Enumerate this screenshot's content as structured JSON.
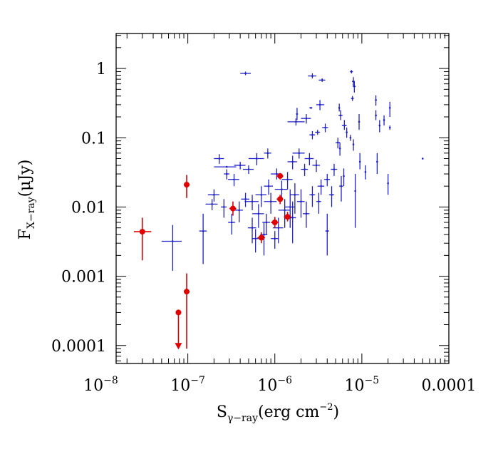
{
  "chart_data": {
    "type": "scatter",
    "x_scale": "log",
    "y_scale": "log",
    "xlim": [
      1.5e-08,
      0.0001
    ],
    "ylim": [
      5.5e-05,
      3.2
    ],
    "grid": false,
    "legend": "none",
    "xlabel": {
      "main": "S",
      "sub": "γ−ray",
      "rest": "(erg cm",
      "sup": "−2",
      "close": ")"
    },
    "ylabel": {
      "main": "F",
      "sub": "X−ray",
      "rest": "(μJy)"
    },
    "xticks": [
      {
        "value": 1e-08,
        "base": "10",
        "exp": "−8"
      },
      {
        "value": 1e-07,
        "base": "10",
        "exp": "−7"
      },
      {
        "value": 1e-06,
        "base": "10",
        "exp": "−6"
      },
      {
        "value": 1e-05,
        "base": "10",
        "exp": "−5"
      },
      {
        "value": 0.0001,
        "text": "0.0001"
      }
    ],
    "yticks": [
      {
        "value": 0.0001,
        "text": "0.0001"
      },
      {
        "value": 0.001,
        "text": "0.001"
      },
      {
        "value": 0.01,
        "text": "0.01"
      },
      {
        "value": 0.1,
        "text": "0.1"
      },
      {
        "value": 1,
        "text": "1"
      }
    ],
    "colors": {
      "blue": "#2020c8",
      "red": "#e00000"
    },
    "series": [
      {
        "color": "blue",
        "marker": "cross",
        "points": [
          {
            "x": 4.6e-07,
            "y": 0.85,
            "xl": 4e-07,
            "xh": 5.3e-07,
            "yl": 0.8,
            "yh": 0.9
          },
          {
            "x": 2.7e-06,
            "y": 0.78,
            "xl": 2.4e-06,
            "xh": 3e-06,
            "yl": 0.72,
            "yh": 0.85
          },
          {
            "x": 3.5e-06,
            "y": 0.68,
            "xl": 3.2e-06,
            "xh": 3.8e-06,
            "yl": 0.64,
            "yh": 0.72
          },
          {
            "x": 7.6e-06,
            "y": 0.9,
            "xl": 7.3e-06,
            "xh": 7.9e-06,
            "yl": 0.85,
            "yh": 0.95
          },
          {
            "x": 8e-06,
            "y": 0.65,
            "xl": 7.7e-06,
            "xh": 8.3e-06,
            "yl": 0.55,
            "yh": 0.75
          },
          {
            "x": 8.2e-06,
            "y": 0.55,
            "xl": 7.9e-06,
            "xh": 8.5e-06,
            "yl": 0.45,
            "yh": 0.65
          },
          {
            "x": 7.8e-06,
            "y": 0.37,
            "xl": 7.5e-06,
            "xh": 8.1e-06,
            "yl": 0.34,
            "yh": 0.4
          },
          {
            "x": 1.45e-05,
            "y": 0.35,
            "yl": 0.29,
            "yh": 0.41
          },
          {
            "x": 1.8e-05,
            "y": 0.18,
            "yl": 0.15,
            "yh": 0.21
          },
          {
            "x": 2.1e-05,
            "y": 0.27,
            "yl": 0.2,
            "yh": 0.33
          },
          {
            "x": 2.1e-05,
            "y": 0.14,
            "yl": 0.13,
            "yh": 0.15
          },
          {
            "x": 1.45e-05,
            "y": 0.21,
            "yl": 0.18,
            "yh": 0.25
          },
          {
            "x": 1.6e-05,
            "y": 0.15,
            "yl": 0.12,
            "yh": 0.18
          },
          {
            "x": 5.5e-06,
            "y": 0.27,
            "yl": 0.24,
            "yh": 0.31
          },
          {
            "x": 5.7e-06,
            "y": 0.21,
            "xl": 5.4e-06,
            "xh": 6e-06,
            "yl": 0.18,
            "yh": 0.25
          },
          {
            "x": 9.3e-06,
            "y": 0.17,
            "yl": 0.13,
            "yh": 0.22
          },
          {
            "x": 3.3e-06,
            "y": 0.3,
            "xl": 3e-06,
            "xh": 3.7e-06,
            "yl": 0.25,
            "yh": 0.35
          },
          {
            "x": 2.6e-06,
            "y": 0.27,
            "xl": 2.5e-06,
            "xh": 2.7e-06
          },
          {
            "x": 2.3e-06,
            "y": 0.19,
            "xl": 2e-06,
            "xh": 2.6e-06,
            "yl": 0.16,
            "yh": 0.22
          },
          {
            "x": 1.75e-06,
            "y": 0.17,
            "xl": 1.4e-06,
            "xh": 2.2e-06,
            "yl": 0.15,
            "yh": 0.19
          },
          {
            "x": 1.8e-06,
            "y": 0.22,
            "yl": 0.18,
            "yh": 0.27
          },
          {
            "x": 3.8e-06,
            "y": 0.14,
            "xl": 3.5e-06,
            "xh": 4.1e-06,
            "yl": 0.12,
            "yh": 0.16
          },
          {
            "x": 3.1e-06,
            "y": 0.12,
            "xl": 2.9e-06,
            "xh": 3.3e-06,
            "yl": 0.11,
            "yh": 0.13
          },
          {
            "x": 2.7e-06,
            "y": 0.11,
            "xl": 2.5e-06,
            "xh": 2.9e-06,
            "yl": 0.095,
            "yh": 0.125
          },
          {
            "x": 6.3e-06,
            "y": 0.15,
            "xl": 5.9e-06,
            "xh": 6.7e-06,
            "yl": 0.13,
            "yh": 0.18
          },
          {
            "x": 6.7e-06,
            "y": 0.12,
            "yl": 0.1,
            "yh": 0.14
          },
          {
            "x": 7.4e-06,
            "y": 0.1,
            "yl": 0.09,
            "yh": 0.11
          },
          {
            "x": 5.3e-06,
            "y": 0.085,
            "xl": 5e-06,
            "xh": 5.6e-06,
            "yl": 0.07,
            "yh": 0.1
          },
          {
            "x": 5.6e-06,
            "y": 0.07,
            "yl": 0.055,
            "yh": 0.085
          },
          {
            "x": 8e-06,
            "y": 0.08,
            "yl": 0.065,
            "yh": 0.095
          },
          {
            "x": 9.5e-06,
            "y": 0.045,
            "yl": 0.035,
            "yh": 0.06
          },
          {
            "x": 1.1e-05,
            "y": 0.032,
            "yl": 0.025,
            "yh": 0.04
          },
          {
            "x": 1.5e-05,
            "y": 0.045,
            "yl": 0.03,
            "yh": 0.06
          },
          {
            "x": 2e-05,
            "y": 0.022,
            "yl": 0.015,
            "yh": 0.03
          },
          {
            "x": 5e-05,
            "y": 0.05,
            "xl": 4.9e-05,
            "xh": 5.1e-05
          },
          {
            "x": 8.4e-06,
            "y": 0.017,
            "yl": 0.005,
            "yh": 0.03
          },
          {
            "x": 5.8e-06,
            "y": 0.02,
            "xl": 5.5e-06,
            "xh": 6.1e-06,
            "yl": 0.012,
            "yh": 0.028
          },
          {
            "x": 6.2e-06,
            "y": 0.028,
            "yl": 0.02,
            "yh": 0.036
          },
          {
            "x": 4.8e-06,
            "y": 0.035,
            "xl": 4.4e-06,
            "xh": 5.2e-06,
            "yl": 0.028,
            "yh": 0.042
          },
          {
            "x": 4e-06,
            "y": 0.025,
            "xl": 3.7e-06,
            "xh": 4.3e-06,
            "yl": 0.02,
            "yh": 0.03
          },
          {
            "x": 3.4e-06,
            "y": 0.02,
            "xl": 3.1e-06,
            "xh": 3.7e-06,
            "yl": 0.015,
            "yh": 0.025
          },
          {
            "x": 3e-06,
            "y": 0.04,
            "xl": 2.7e-06,
            "xh": 3.3e-06,
            "yl": 0.032,
            "yh": 0.048
          },
          {
            "x": 2.5e-06,
            "y": 0.05,
            "xl": 2.2e-06,
            "xh": 2.8e-06,
            "yl": 0.04,
            "yh": 0.06
          },
          {
            "x": 2.2e-06,
            "y": 0.035,
            "xl": 2e-06,
            "xh": 2.4e-06,
            "yl": 0.028,
            "yh": 0.042
          },
          {
            "x": 1.9e-06,
            "y": 0.06,
            "xl": 1.6e-06,
            "xh": 2.2e-06,
            "yl": 0.05,
            "yh": 0.07
          },
          {
            "x": 1.6e-06,
            "y": 0.045,
            "xl": 1.4e-06,
            "xh": 1.8e-06,
            "yl": 0.035,
            "yh": 0.055
          },
          {
            "x": 1.4e-06,
            "y": 0.025,
            "xl": 1.2e-06,
            "xh": 1.6e-06,
            "yl": 0.018,
            "yh": 0.032
          },
          {
            "x": 1.7e-06,
            "y": 0.015,
            "xl": 1.5e-06,
            "xh": 1.9e-06,
            "yl": 0.008,
            "yh": 0.022
          },
          {
            "x": 1.5e-06,
            "y": 0.01,
            "xl": 1.3e-06,
            "xh": 1.7e-06,
            "yl": 0.005,
            "yh": 0.018
          },
          {
            "x": 1.6e-06,
            "y": 0.007,
            "xl": 1.45e-06,
            "xh": 1.75e-06,
            "yl": 0.003,
            "yh": 0.012
          },
          {
            "x": 2e-06,
            "y": 0.012,
            "xl": 1.8e-06,
            "xh": 2.2e-06,
            "yl": 0.007,
            "yh": 0.018
          },
          {
            "x": 2.3e-06,
            "y": 0.008,
            "xl": 2.1e-06,
            "xh": 2.5e-06,
            "yl": 0.005,
            "yh": 0.012
          },
          {
            "x": 2.7e-06,
            "y": 0.015,
            "xl": 2.5e-06,
            "xh": 2.9e-06,
            "yl": 0.01,
            "yh": 0.02
          },
          {
            "x": 3.2e-06,
            "y": 0.012,
            "xl": 3e-06,
            "xh": 3.4e-06,
            "yl": 0.008,
            "yh": 0.016
          },
          {
            "x": 4e-06,
            "y": 0.0045,
            "xl": 3.8e-06,
            "xh": 4.2e-06,
            "yl": 0.002,
            "yh": 0.008
          },
          {
            "x": 4.5e-06,
            "y": 0.015,
            "xl": 4.2e-06,
            "xh": 4.8e-06,
            "yl": 0.01,
            "yh": 0.02
          },
          {
            "x": 1.2e-06,
            "y": 0.018,
            "xl": 1e-06,
            "xh": 1.4e-06,
            "yl": 0.012,
            "yh": 0.024
          },
          {
            "x": 1.3e-06,
            "y": 0.009,
            "xl": 1.1e-06,
            "xh": 1.5e-06,
            "yl": 0.005,
            "yh": 0.013
          },
          {
            "x": 1.1e-06,
            "y": 0.005,
            "xl": 9.5e-07,
            "xh": 1.25e-06,
            "yl": 0.003,
            "yh": 0.007
          },
          {
            "x": 9e-07,
            "y": 0.012,
            "xl": 7.5e-07,
            "xh": 1.05e-06,
            "yl": 0.008,
            "yh": 0.016
          },
          {
            "x": 1.05e-06,
            "y": 0.03,
            "xl": 9e-07,
            "xh": 1.2e-06,
            "yl": 0.025,
            "yh": 0.036
          },
          {
            "x": 8.5e-07,
            "y": 0.02,
            "xl": 7.5e-07,
            "xh": 9.5e-07,
            "yl": 0.015,
            "yh": 0.025
          },
          {
            "x": 7e-07,
            "y": 0.015,
            "xl": 6e-07,
            "xh": 8e-07,
            "yl": 0.01,
            "yh": 0.02
          },
          {
            "x": 6.5e-07,
            "y": 0.008,
            "xl": 5.5e-07,
            "xh": 7.5e-07,
            "yl": 0.005,
            "yh": 0.011
          },
          {
            "x": 5.5e-07,
            "y": 0.012,
            "xl": 4.5e-07,
            "xh": 6.5e-07,
            "yl": 0.009,
            "yh": 0.015
          },
          {
            "x": 8.3e-07,
            "y": 0.06,
            "xl": 7.5e-07,
            "xh": 9.1e-07,
            "yl": 0.05,
            "yh": 0.07
          },
          {
            "x": 6.2e-07,
            "y": 0.05,
            "xl": 5e-07,
            "xh": 7.5e-07,
            "yl": 0.04,
            "yh": 0.06
          },
          {
            "x": 5e-07,
            "y": 0.035,
            "xl": 4.3e-07,
            "xh": 5.7e-07,
            "yl": 0.03,
            "yh": 0.04
          },
          {
            "x": 4e-07,
            "y": 0.04,
            "xl": 3.4e-07,
            "xh": 4.6e-07,
            "yl": 0.035,
            "yh": 0.045
          },
          {
            "x": 3.4e-07,
            "y": 0.025,
            "xl": 2.9e-07,
            "xh": 3.9e-07,
            "yl": 0.02,
            "yh": 0.03
          },
          {
            "x": 2.8e-07,
            "y": 0.038,
            "xl": 2e-07,
            "xh": 3.6e-07
          },
          {
            "x": 2.3e-07,
            "y": 0.05,
            "xl": 2e-07,
            "xh": 2.6e-07,
            "yl": 0.042,
            "yh": 0.058
          },
          {
            "x": 2.8e-07,
            "y": 0.03,
            "xl": 2.6e-07,
            "xh": 3e-07,
            "yl": 0.025,
            "yh": 0.035
          },
          {
            "x": 2e-07,
            "y": 0.015,
            "xl": 1.7e-07,
            "xh": 2.3e-07,
            "yl": 0.012,
            "yh": 0.018
          },
          {
            "x": 1.9e-07,
            "y": 0.011,
            "xl": 1.6e-07,
            "xh": 2.2e-07,
            "yl": 0.009,
            "yh": 0.013
          },
          {
            "x": 2.6e-07,
            "y": 0.01,
            "xl": 2.4e-07,
            "xh": 2.8e-07,
            "yl": 0.007,
            "yh": 0.013
          },
          {
            "x": 3.2e-07,
            "y": 0.006,
            "xl": 2.9e-07,
            "xh": 3.5e-07,
            "yl": 0.004,
            "yh": 0.008
          },
          {
            "x": 3.9e-07,
            "y": 0.009,
            "xl": 3.5e-07,
            "xh": 4.3e-07,
            "yl": 0.006,
            "yh": 0.012
          },
          {
            "x": 4.6e-07,
            "y": 0.013,
            "xl": 4.1e-07,
            "xh": 5.1e-07,
            "yl": 0.01,
            "yh": 0.016
          },
          {
            "x": 1.5e-07,
            "y": 0.0045,
            "xl": 1.35e-07,
            "xh": 1.65e-07,
            "yl": 0.0015,
            "yh": 0.008
          },
          {
            "x": 6.7e-08,
            "y": 0.0032,
            "xl": 5e-08,
            "xh": 8.5e-08,
            "yl": 0.0012,
            "yh": 0.0055
          },
          {
            "x": 5.5e-07,
            "y": 0.005,
            "xl": 4.9e-07,
            "xh": 6.1e-07,
            "yl": 0.003,
            "yh": 0.007
          },
          {
            "x": 6e-07,
            "y": 0.0035,
            "xl": 5.5e-07,
            "xh": 6.5e-07,
            "yl": 0.0022,
            "yh": 0.0048
          },
          {
            "x": 7.5e-07,
            "y": 0.004,
            "xl": 6.8e-07,
            "xh": 8.2e-07,
            "yl": 0.002,
            "yh": 0.006
          },
          {
            "x": 8e-07,
            "y": 0.006,
            "xl": 7.2e-07,
            "xh": 8.8e-07,
            "yl": 0.004,
            "yh": 0.008
          },
          {
            "x": 1e-06,
            "y": 0.0035,
            "xl": 9e-07,
            "xh": 1.1e-06,
            "yl": 0.0025,
            "yh": 0.0045
          }
        ]
      },
      {
        "color": "red",
        "marker": "filled-circle",
        "points": [
          {
            "x": 3e-08,
            "y": 0.0044,
            "xl": 2.4e-08,
            "xh": 3.8e-08,
            "yl": 0.0017,
            "yh": 0.007
          },
          {
            "x": 9.7e-08,
            "y": 0.021,
            "xl": 9e-08,
            "xh": 1.05e-07,
            "yl": 0.0135,
            "yh": 0.029
          },
          {
            "x": 9.7e-08,
            "y": 0.0006,
            "xl": 9e-08,
            "xh": 1.05e-07,
            "yl": 9e-05,
            "yh": 0.0011
          },
          {
            "x": 7.8e-08,
            "y": 0.0003,
            "xl": 7.3e-08,
            "xh": 8.4e-08,
            "yl": 9e-05,
            "upper_limit": true
          },
          {
            "x": 3.3e-07,
            "y": 0.0095,
            "xl": 3e-07,
            "xh": 3.6e-07,
            "yl": 0.0075,
            "yh": 0.012
          },
          {
            "x": 7e-07,
            "y": 0.0036,
            "xl": 6.3e-07,
            "xh": 7.7e-07,
            "yl": 0.003,
            "yh": 0.0043
          },
          {
            "x": 1e-06,
            "y": 0.006,
            "xl": 9e-07,
            "xh": 1.1e-06,
            "yl": 0.005,
            "yh": 0.0072
          },
          {
            "x": 1.15e-06,
            "y": 0.013,
            "xl": 1.05e-06,
            "xh": 1.25e-06,
            "yl": 0.011,
            "yh": 0.015
          },
          {
            "x": 1.15e-06,
            "y": 0.028,
            "xl": 1.05e-06,
            "xh": 1.25e-06,
            "yl": 0.025,
            "yh": 0.031
          },
          {
            "x": 1.4e-06,
            "y": 0.0072,
            "xl": 1.27e-06,
            "xh": 1.55e-06,
            "yl": 0.0062,
            "yh": 0.0085
          }
        ]
      }
    ]
  }
}
